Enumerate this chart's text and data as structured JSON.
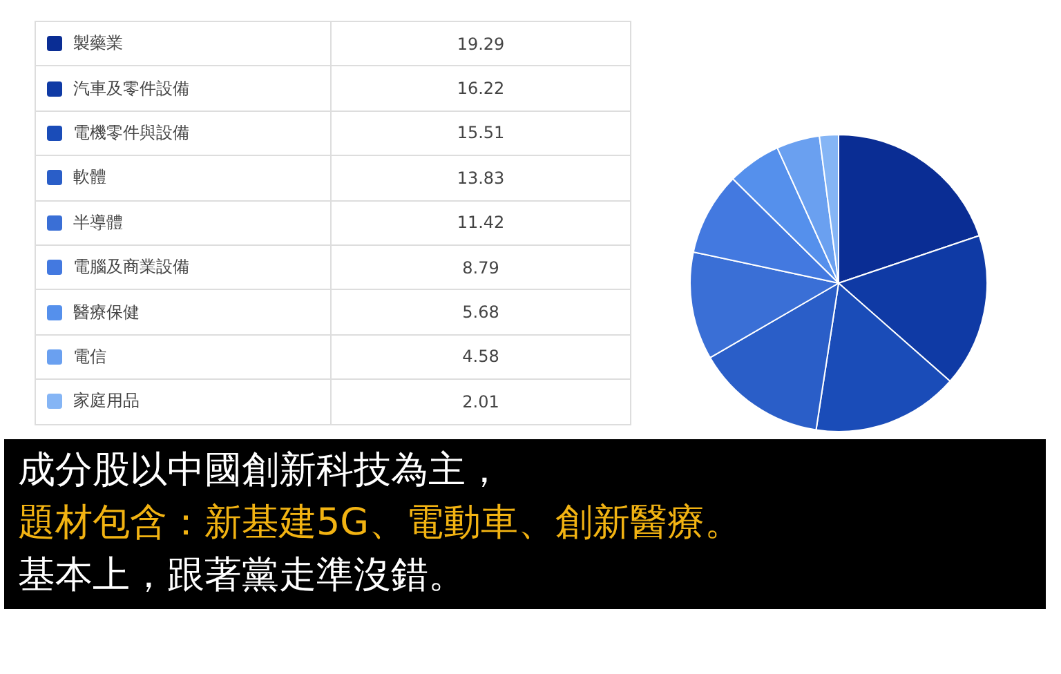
{
  "chart_data": {
    "type": "pie",
    "categories": [
      "製藥業",
      "汽車及零件設備",
      "電機零件與設備",
      "軟體",
      "半導體",
      "電腦及商業設備",
      "醫療保健",
      "電信",
      "家庭用品"
    ],
    "values": [
      19.29,
      16.22,
      15.51,
      13.83,
      11.42,
      8.79,
      5.68,
      4.58,
      2.01
    ],
    "colors": [
      "#0a2d94",
      "#0f3aa5",
      "#1a4cb8",
      "#2a5ec8",
      "#3a6fd6",
      "#4379e0",
      "#5590ec",
      "#6aa0f0",
      "#85b5f5"
    ],
    "legend": "left",
    "data_labels": true,
    "annotations": [
      "成分股以中國創新科技為主，",
      "題材包含：新基建5G、電動車、創新醫療。",
      "基本上，跟著黨走準沒錯。"
    ]
  }
}
